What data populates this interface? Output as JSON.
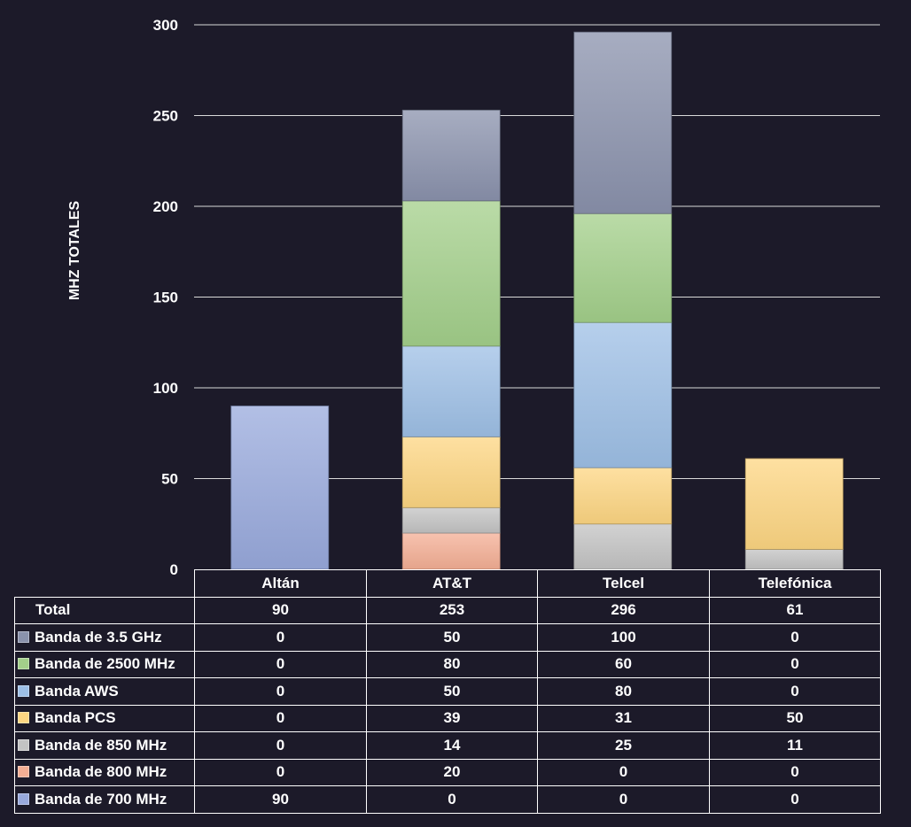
{
  "chart_data": {
    "type": "bar",
    "stacked": true,
    "ylabel": "MHZ TOTALES",
    "ylim": [
      0,
      300
    ],
    "yticks": [
      0,
      50,
      100,
      150,
      200,
      250,
      300
    ],
    "grid": true,
    "legend": "data-table",
    "categories": [
      "Altán",
      "AT&T",
      "Telcel",
      "Telefónica"
    ],
    "totals_label": "Total",
    "totals": [
      90,
      253,
      296,
      61
    ],
    "series": [
      {
        "name": "Banda de 3.5 GHz",
        "color": "#8a92ac",
        "values": [
          0,
          50,
          100,
          0
        ]
      },
      {
        "name": "Banda de 2500 MHz",
        "color": "#a3cf8a",
        "values": [
          0,
          80,
          60,
          0
        ]
      },
      {
        "name": "Banda AWS",
        "color": "#9dbfe6",
        "values": [
          0,
          50,
          80,
          0
        ]
      },
      {
        "name": "Banda PCS",
        "color": "#fdd682",
        "values": [
          0,
          39,
          31,
          50
        ]
      },
      {
        "name": "Banda de 850 MHz",
        "color": "#c3c3c3",
        "values": [
          0,
          14,
          25,
          11
        ]
      },
      {
        "name": "Banda de 800 MHz",
        "color": "#f4ae94",
        "values": [
          0,
          20,
          0,
          0
        ]
      },
      {
        "name": "Banda de 700 MHz",
        "color": "#98a9dc",
        "values": [
          90,
          0,
          0,
          0
        ]
      }
    ]
  }
}
